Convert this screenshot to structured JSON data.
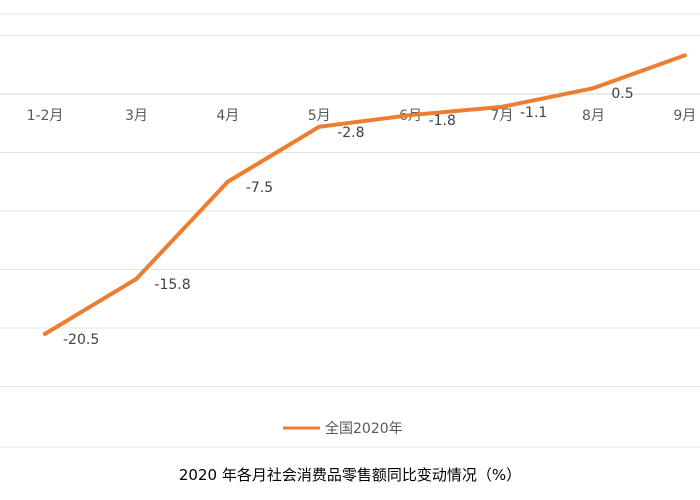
{
  "chart_data": {
    "type": "line",
    "title": "2020 年各月社会消费品零售额同比变动情况（%）",
    "categories": [
      "1-2月",
      "3月",
      "4月",
      "5月",
      "6月",
      "7月",
      "8月",
      "9月"
    ],
    "series": [
      {
        "name": "全国2020年",
        "values": [
          -20.5,
          -15.8,
          -7.5,
          -2.8,
          -1.8,
          -1.1,
          0.5,
          3.3
        ],
        "data_labels": [
          "-20.5",
          "-15.8",
          "-7.5",
          "-2.8",
          "-1.8",
          "-1.1",
          "0.5",
          ""
        ],
        "color": "#ED7D31"
      }
    ],
    "ylim": [
      -25,
      5
    ],
    "y_gridline_step": 5,
    "grid": true,
    "legend_position": "bottom",
    "x_axis_position": "at zero"
  }
}
